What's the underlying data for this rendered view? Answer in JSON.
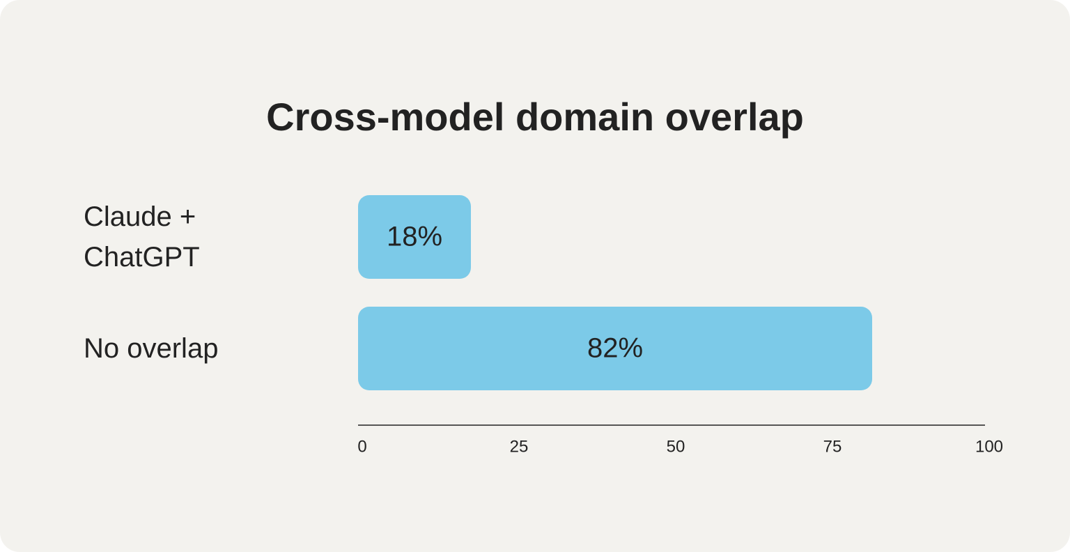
{
  "chart_data": {
    "type": "bar",
    "orientation": "horizontal",
    "title": "Cross-model domain overlap",
    "categories": [
      "Claude + ChatGPT",
      "No overlap"
    ],
    "values": [
      18,
      82
    ],
    "value_labels": [
      "18%",
      "82%"
    ],
    "color": "#7ccae8",
    "xlim": [
      0,
      100
    ],
    "xticks": [
      0,
      25,
      50,
      75,
      100
    ],
    "grid": false
  }
}
